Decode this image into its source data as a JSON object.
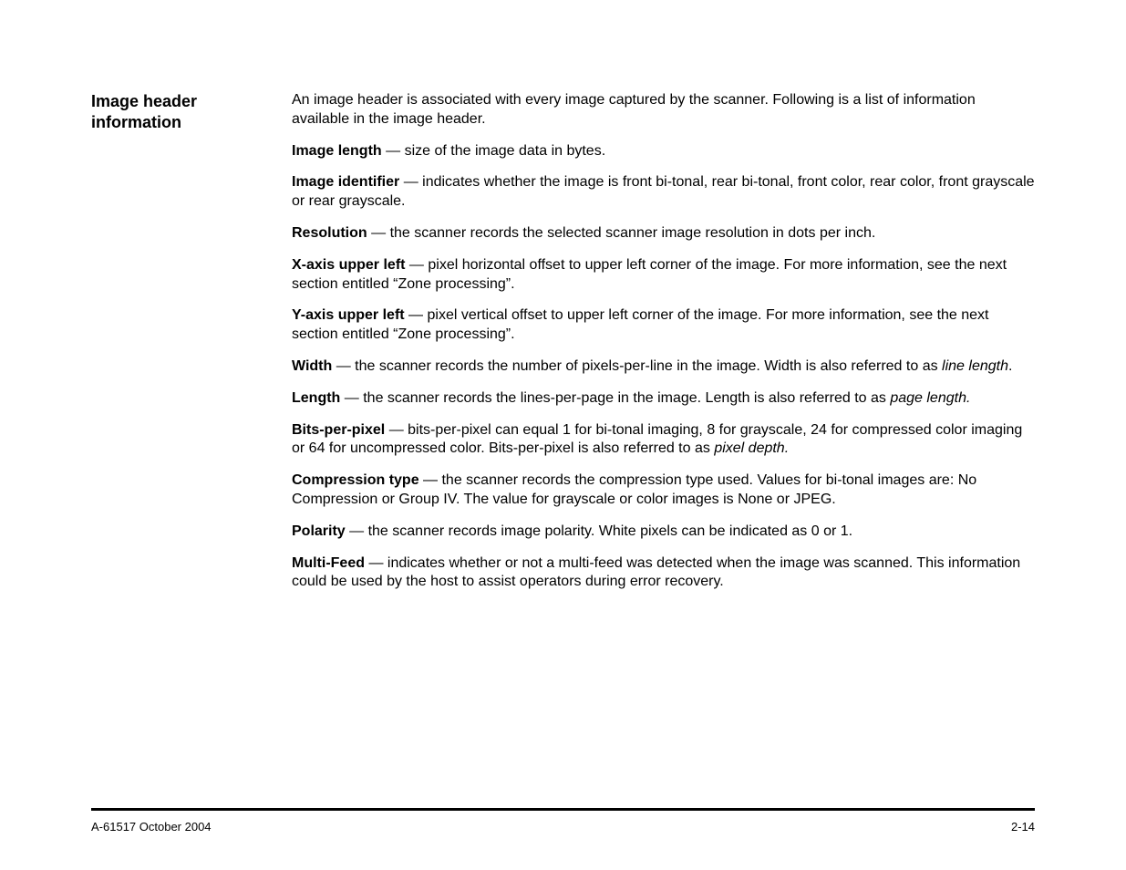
{
  "sidebar": {
    "heading_line1": "Image header",
    "heading_line2": "information"
  },
  "intro": "An image header is associated with every image captured by the scanner. Following is a list of information available in the image header.",
  "defs": [
    {
      "term": "Image length",
      "sep": "  —  ",
      "body": "size of the image data in bytes."
    },
    {
      "term": "Image identifier",
      "sep": " — ",
      "body": "indicates whether the image is front bi-tonal, rear bi-tonal, front color, rear color, front grayscale or rear grayscale."
    },
    {
      "term": "Resolution",
      "sep": " — ",
      "body": "the scanner records the selected scanner image resolution in dots per inch."
    },
    {
      "term": "X-axis upper left",
      "sep": " — ",
      "body": "pixel horizontal offset to upper left corner of the image. For more information, see the next section entitled “Zone processing”."
    },
    {
      "term": "Y-axis upper left",
      "sep": " — ",
      "body": "pixel vertical offset to upper left corner of the image. For more information, see the next section entitled “Zone processing”."
    },
    {
      "term": "Width",
      "sep": " — ",
      "body_pre": "the scanner records the number of pixels-per-line in the image. Width is also referred to as ",
      "em": "line length",
      "body_post": "."
    },
    {
      "term": "Length",
      "sep": " — ",
      "body_pre": "the scanner records the lines-per-page in the image. Length is also referred to as ",
      "em": "page length.",
      "body_post": ""
    },
    {
      "term": "Bits-per-pixel",
      "sep": " — ",
      "body_pre": "bits-per-pixel can equal 1 for bi-tonal imaging, 8 for grayscale, 24 for compressed color imaging or 64 for uncompressed color. Bits-per-pixel is also referred to as ",
      "em": "pixel depth.",
      "body_post": ""
    },
    {
      "term": "Compression type",
      "sep": " — ",
      "body": "the scanner records the compression type used. Values for bi-tonal images are: No Compression or Group IV. The value for grayscale or color images is None or JPEG."
    },
    {
      "term": "Polarity",
      "sep": " — ",
      "body": "the scanner records image polarity. White pixels can be indicated as 0 or 1."
    },
    {
      "term": "Multi-Feed",
      "sep": " — ",
      "body": "indicates whether or not a multi-feed was detected when the image was scanned. This information could be used by the host to assist operators during error recovery."
    }
  ],
  "footer": {
    "left": "A-61517  October 2004",
    "right": "2-14"
  }
}
